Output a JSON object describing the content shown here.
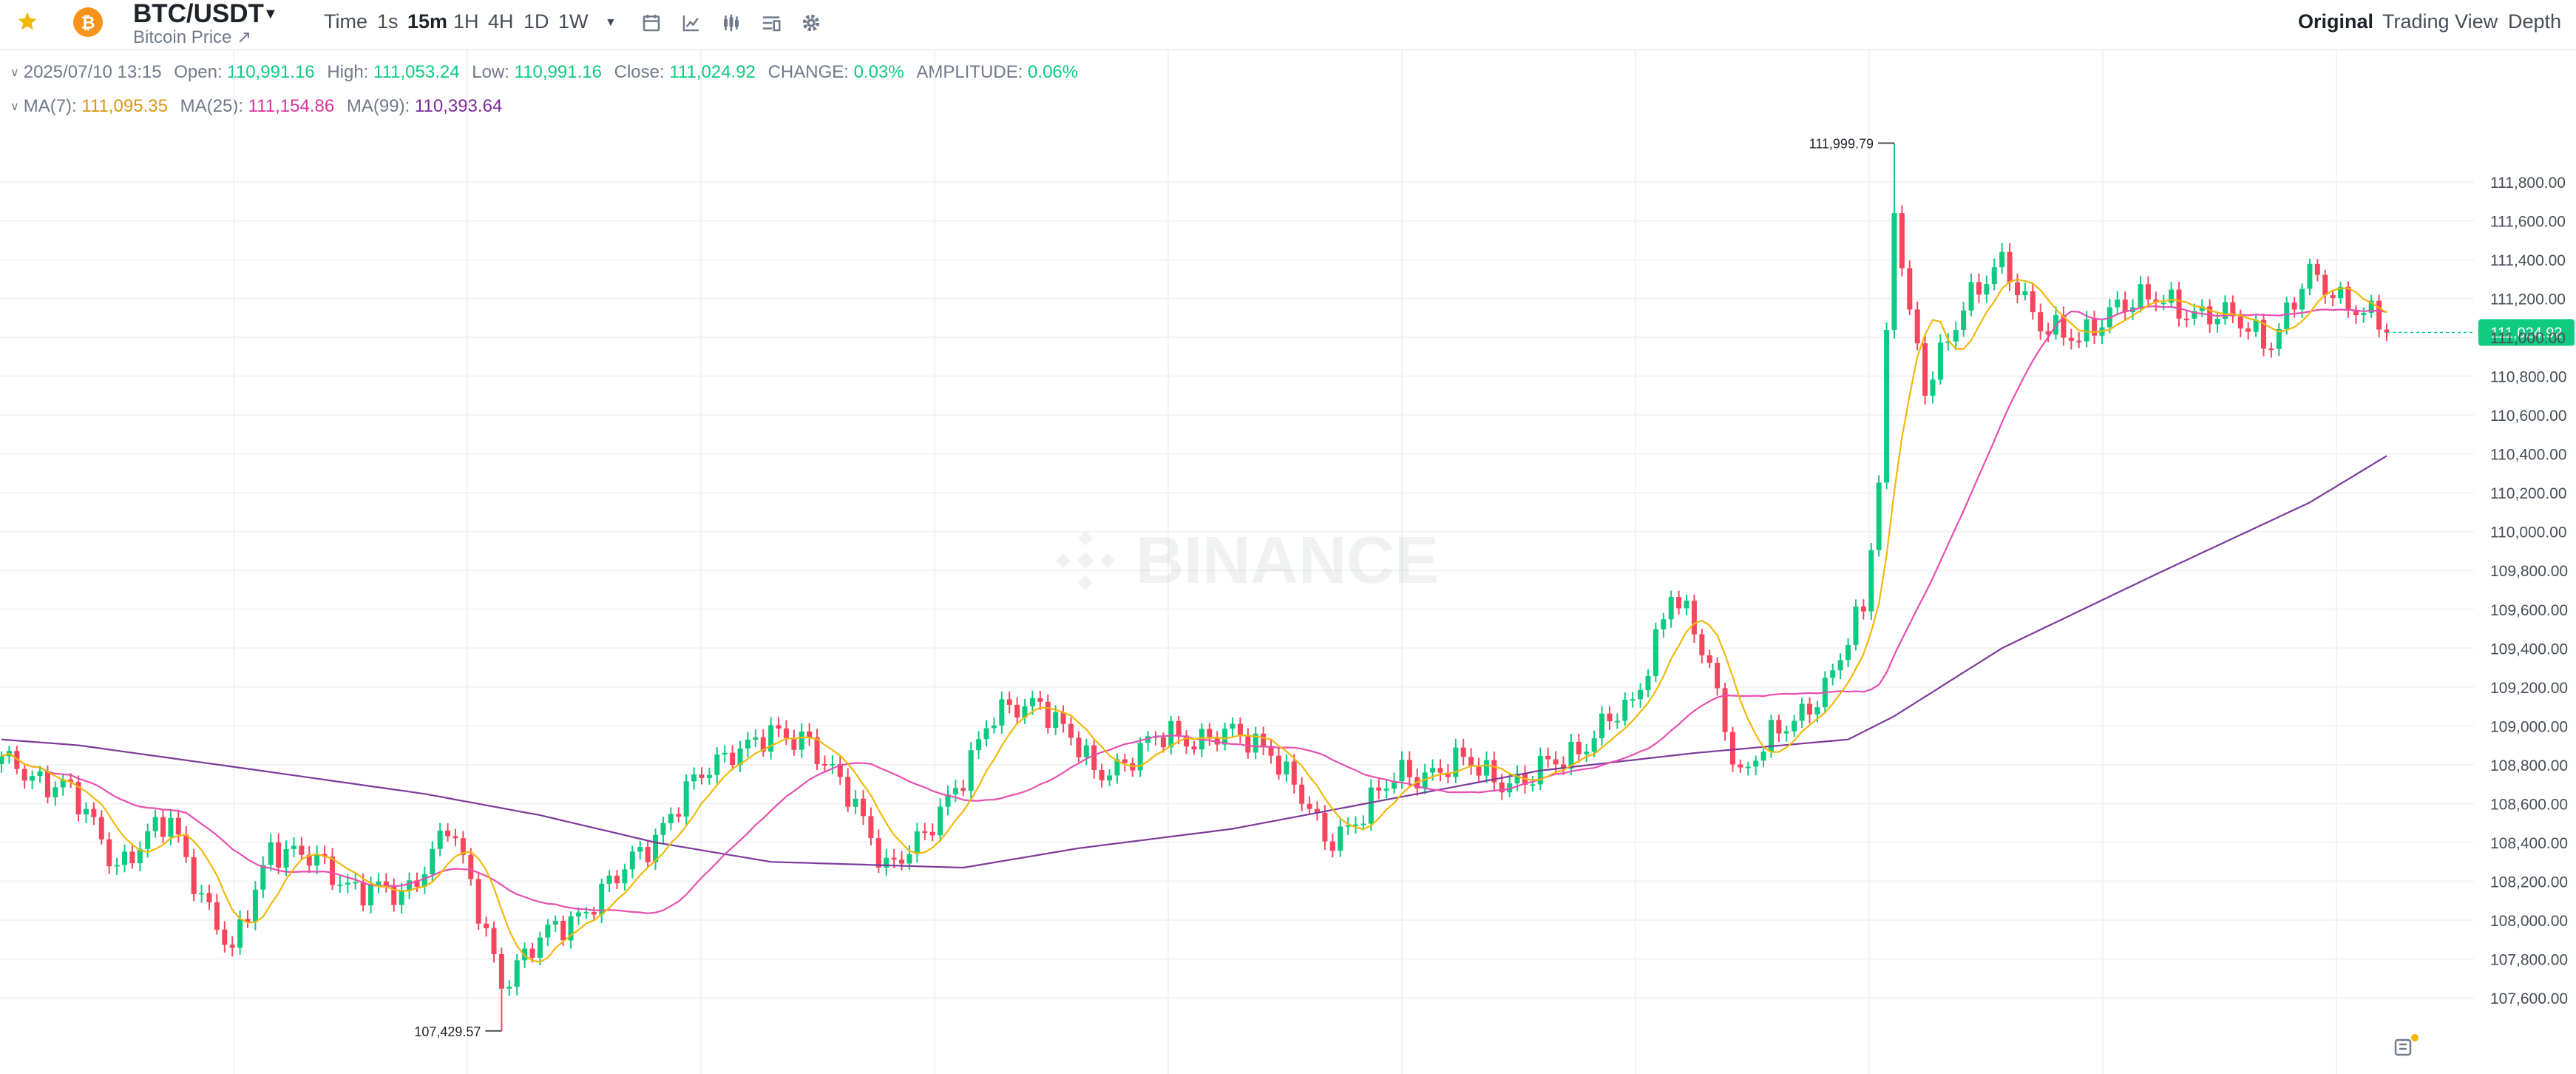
{
  "toolbar": {
    "pair": "BTC/USDT",
    "subtitle": "Bitcoin Price ↗",
    "time_label": "Time",
    "timeframes": [
      "1s",
      "15m",
      "1H",
      "4H",
      "1D",
      "1W"
    ],
    "active_timeframe": "15m",
    "views": [
      "Original",
      "Trading View",
      "Depth"
    ],
    "active_view": "Original",
    "icons": [
      "star-icon",
      "bitcoin-icon",
      "chevron-down-icon",
      "calendar-icon",
      "line-chart-icon",
      "indicator-icon",
      "layout-icon",
      "gear-icon"
    ]
  },
  "info": {
    "datetime": "2025/07/10 13:15",
    "open_label": "Open:",
    "open": "110,991.16",
    "high_label": "High:",
    "high": "111,053.24",
    "low_label": "Low:",
    "low": "110,991.16",
    "close_label": "Close:",
    "close": "111,024.92",
    "change_label": "CHANGE:",
    "change": "0.03%",
    "amplitude_label": "AMPLITUDE:",
    "amplitude": "0.06%",
    "ma7_label": "MA(7):",
    "ma7": "111,095.35",
    "ma25_label": "MA(25):",
    "ma25": "111,154.86",
    "ma99_label": "MA(99):",
    "ma99": "110,393.64"
  },
  "watermark": "BINANCE",
  "colors": {
    "up": "#0ecb81",
    "down": "#f6465d",
    "ma7": "#f0b90b",
    "ma25": "#e84fb0",
    "ma99": "#7d3a9c",
    "price_tag": "#0ecb81"
  },
  "chart_data": {
    "type": "candlestick",
    "interval": "15m",
    "ylim": [
      107400,
      112000
    ],
    "yticks": [
      "107,600.00",
      "107,800.00",
      "108,000.00",
      "108,200.00",
      "108,400.00",
      "108,600.00",
      "108,800.00",
      "109,000.00",
      "109,200.00",
      "109,400.00",
      "109,600.00",
      "109,800.00",
      "110,000.00",
      "110,200.00",
      "110,400.00",
      "110,600.00",
      "110,800.00",
      "111,000.00",
      "111,200.00",
      "111,400.00",
      "111,600.00",
      "111,800.00"
    ],
    "max_annotation": {
      "label": "111,999.79",
      "value": 111999.79,
      "index": 246
    },
    "min_annotation": {
      "label": "107,429.57",
      "value": 107429.57,
      "index": 65
    },
    "last_price_label": "111,024.92",
    "last_price": 111024.92,
    "series": [
      {
        "name": "MA(7)"
      },
      {
        "name": "MA(25)"
      },
      {
        "name": "MA(99)"
      }
    ],
    "ma99_anchors": [
      [
        0,
        108930
      ],
      [
        10,
        108900
      ],
      [
        30,
        108790
      ],
      [
        55,
        108650
      ],
      [
        70,
        108540
      ],
      [
        85,
        108400
      ],
      [
        100,
        108300
      ],
      [
        125,
        108270
      ],
      [
        140,
        108370
      ],
      [
        160,
        108470
      ],
      [
        180,
        108620
      ],
      [
        200,
        108770
      ],
      [
        220,
        108860
      ],
      [
        240,
        108930
      ],
      [
        246,
        109050
      ],
      [
        260,
        109400
      ],
      [
        280,
        109780
      ],
      [
        300,
        110150
      ],
      [
        310,
        110390
      ]
    ],
    "anchors": [
      [
        0,
        108800
      ],
      [
        8,
        108700
      ],
      [
        15,
        108300
      ],
      [
        22,
        108500
      ],
      [
        30,
        107800
      ],
      [
        35,
        108400
      ],
      [
        45,
        108200
      ],
      [
        52,
        108100
      ],
      [
        58,
        108500
      ],
      [
        65,
        107700
      ],
      [
        72,
        107950
      ],
      [
        80,
        108200
      ],
      [
        88,
        108600
      ],
      [
        95,
        108900
      ],
      [
        105,
        108950
      ],
      [
        115,
        108300
      ],
      [
        120,
        108400
      ],
      [
        128,
        109000
      ],
      [
        135,
        109150
      ],
      [
        142,
        108750
      ],
      [
        152,
        108950
      ],
      [
        158,
        108950
      ],
      [
        165,
        108900
      ],
      [
        172,
        108400
      ],
      [
        178,
        108600
      ],
      [
        182,
        108750
      ],
      [
        190,
        108800
      ],
      [
        198,
        108700
      ],
      [
        205,
        108900
      ],
      [
        212,
        109100
      ],
      [
        217,
        109700
      ],
      [
        222,
        109300
      ],
      [
        226,
        108750
      ],
      [
        232,
        109000
      ],
      [
        238,
        109250
      ],
      [
        242,
        109600
      ],
      [
        244,
        110300
      ],
      [
        246,
        111700
      ],
      [
        248,
        111100
      ],
      [
        250,
        110700
      ],
      [
        255,
        111200
      ],
      [
        260,
        111350
      ],
      [
        265,
        111100
      ],
      [
        270,
        110950
      ],
      [
        275,
        111200
      ],
      [
        285,
        111150
      ],
      [
        295,
        111000
      ],
      [
        300,
        111300
      ],
      [
        305,
        111200
      ],
      [
        310,
        111030
      ]
    ]
  }
}
